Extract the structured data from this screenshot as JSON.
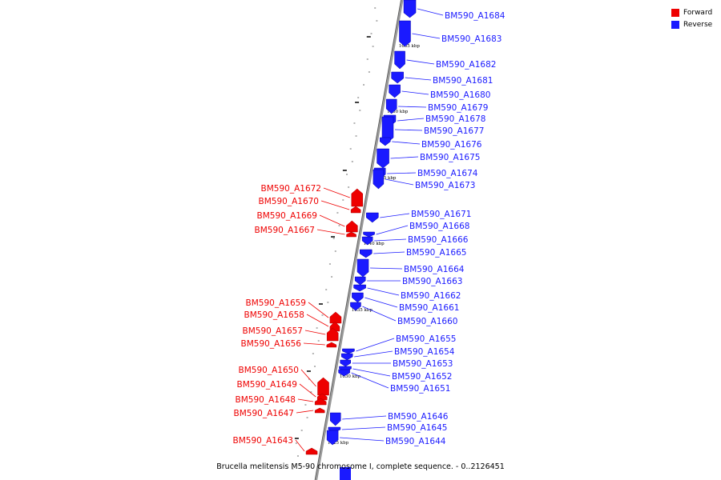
{
  "title": "Brucella melitensis M5-90 chromosome I, complete sequence. - 0..2126451",
  "legend": [
    {
      "label": "Forward",
      "color": "#ee0000"
    },
    {
      "label": "Reverse",
      "color": "#1a1aff"
    }
  ],
  "colors": {
    "forward": "#ee0000",
    "reverse": "#1a1aff",
    "axis": "#888888"
  },
  "scale_labels": [
    "1655 kbp",
    "1650 kbp",
    "1645 kbp",
    "1640 kbp",
    "1635 kbp",
    "1630 kbp",
    "1625 kbp"
  ],
  "forward_genes": [
    "BM590_A1672",
    "BM590_A1670",
    "BM590_A1669",
    "BM590_A1667",
    "BM590_A1659",
    "BM590_A1658",
    "BM590_A1657",
    "BM590_A1656",
    "BM590_A1650",
    "BM590_A1649",
    "BM590_A1648",
    "BM590_A1647",
    "BM590_A1643"
  ],
  "reverse_genes": [
    "BM590_A1684",
    "BM590_A1683",
    "BM590_A1682",
    "BM590_A1681",
    "BM590_A1680",
    "BM590_A1679",
    "BM590_A1678",
    "BM590_A1677",
    "BM590_A1676",
    "BM590_A1675",
    "BM590_A1674",
    "BM590_A1673",
    "BM590_A1671",
    "BM590_A1668",
    "BM590_A1666",
    "BM590_A1665",
    "BM590_A1664",
    "BM590_A1663",
    "BM590_A1662",
    "BM590_A1661",
    "BM590_A1660",
    "BM590_A1655",
    "BM590_A1654",
    "BM590_A1653",
    "BM590_A1652",
    "BM590_A1651",
    "BM590_A1646",
    "BM590_A1645",
    "BM590_A1644"
  ]
}
